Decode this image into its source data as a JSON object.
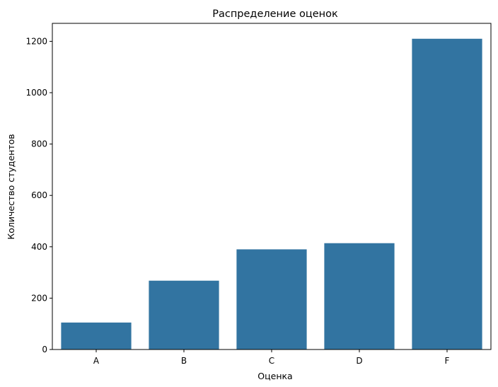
{
  "chart_data": {
    "type": "bar",
    "title": "Распределение оценок",
    "xlabel": "Оценка",
    "ylabel": "Количество студентов",
    "categories": [
      "A",
      "B",
      "C",
      "D",
      "F"
    ],
    "values": [
      105,
      268,
      390,
      414,
      1210
    ],
    "ylim": [
      0,
      1270
    ],
    "yticks": [
      0,
      200,
      400,
      600,
      800,
      1000,
      1200
    ],
    "grid": false,
    "bar_color": "#3274a1"
  }
}
